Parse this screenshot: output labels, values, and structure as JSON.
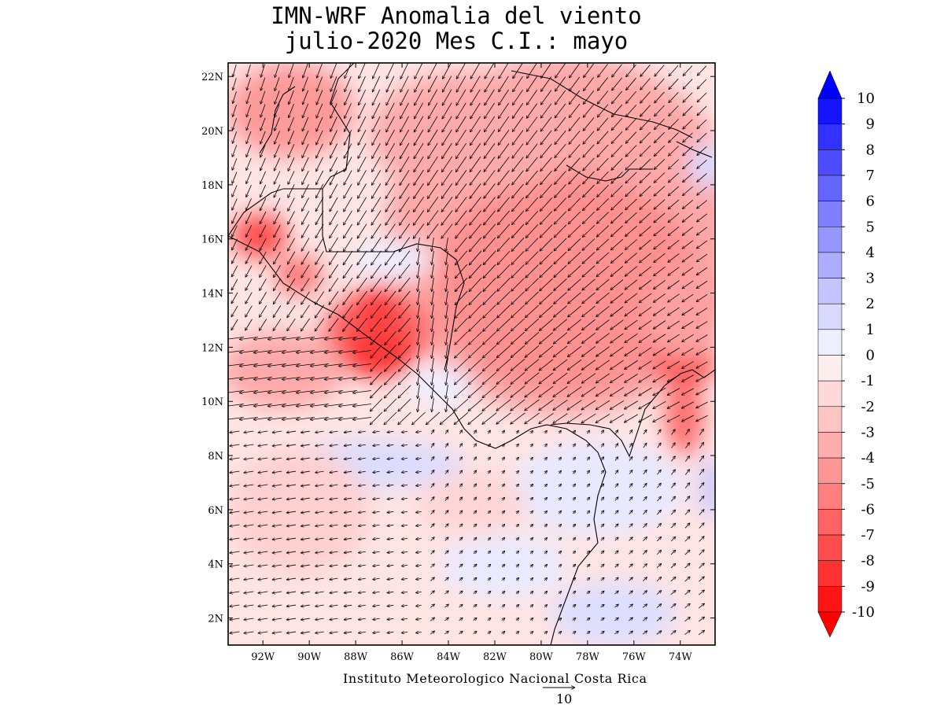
{
  "title": {
    "line1": "IMN-WRF Anomalia del viento",
    "line2": "julio-2020 Mes C.I.: mayo"
  },
  "credit": "Instituto Meteorologico Nacional Costa Rica",
  "reference_vector": {
    "label": "10",
    "magnitude": 10
  },
  "map": {
    "lon_range": [
      -93.5,
      -72.5
    ],
    "lat_range": [
      1.0,
      22.5
    ],
    "lon_ticks": [
      "92W",
      "90W",
      "88W",
      "86W",
      "84W",
      "82W",
      "80W",
      "78W",
      "76W",
      "74W"
    ],
    "lon_tick_values": [
      -92,
      -90,
      -88,
      -86,
      -84,
      -82,
      -80,
      -78,
      -76,
      -74
    ],
    "lat_ticks": [
      "2N",
      "4N",
      "6N",
      "8N",
      "10N",
      "12N",
      "14N",
      "16N",
      "18N",
      "20N",
      "22N"
    ],
    "lat_tick_values": [
      2,
      4,
      6,
      8,
      10,
      12,
      14,
      16,
      18,
      20,
      22
    ]
  },
  "colorbar": {
    "labels": [
      "10",
      "9",
      "8",
      "7",
      "6",
      "5",
      "4",
      "3",
      "2",
      "1",
      "0",
      "-1",
      "-2",
      "-3",
      "-4",
      "-5",
      "-6",
      "-7",
      "-8",
      "-9",
      "-10"
    ],
    "colors": [
      "#1414ff",
      "#3232ff",
      "#4d4dff",
      "#6464ff",
      "#7f7fff",
      "#9696ff",
      "#adadff",
      "#c4c4ff",
      "#d9d9ff",
      "#eeeeff",
      "#ffeeee",
      "#ffd9d9",
      "#ffc4c4",
      "#ffadad",
      "#ff9696",
      "#ff7f7f",
      "#ff6464",
      "#ff4d4d",
      "#ff3232",
      "#ff1414"
    ],
    "high_arrow_color": "#0000ff",
    "low_arrow_color": "#ff0000"
  },
  "colors": {
    "strong_anomaly": "#ff1a1a",
    "weak_negative": "#ffd0d0",
    "weak_positive": "#e8e8ff",
    "coastline": "#000000"
  }
}
